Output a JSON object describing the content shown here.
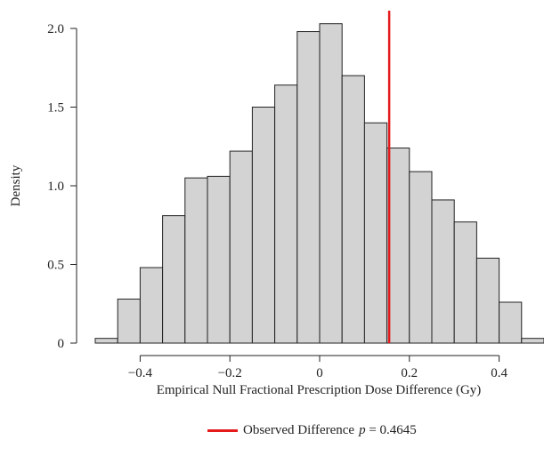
{
  "chart_data": {
    "type": "histogram",
    "xlabel": "Empirical Null Fractional Prescription Dose Difference (Gy)",
    "ylabel": "Density",
    "xlim": [
      -0.5,
      0.5
    ],
    "ylim": [
      0,
      2.0
    ],
    "xticks": [
      -0.4,
      -0.2,
      0,
      0.2,
      0.4
    ],
    "xtick_labels": [
      "−0.4",
      "−0.2",
      "0",
      "0.2",
      "0.4"
    ],
    "yticks": [
      0,
      0.5,
      1.0,
      1.5,
      2.0
    ],
    "ytick_labels": [
      "0",
      "0.5",
      "1.0",
      "1.5",
      "2.0"
    ],
    "bin_width": 0.05,
    "bin_start": -0.5,
    "values": [
      0.03,
      0.28,
      0.48,
      0.81,
      1.05,
      1.06,
      1.22,
      1.5,
      1.64,
      1.98,
      2.03,
      1.7,
      1.4,
      1.24,
      1.09,
      0.91,
      0.77,
      0.54,
      0.26,
      0.03
    ],
    "bar_color": "#d3d3d3",
    "bar_edge_color": "#222222",
    "observed_line": {
      "x": 0.155,
      "color": "#e41a1c"
    },
    "grid": false,
    "legend": {
      "placement": "bottom-center",
      "label": "Observed Difference",
      "p_symbol": "p",
      "p_text": " = 0.4645"
    }
  }
}
